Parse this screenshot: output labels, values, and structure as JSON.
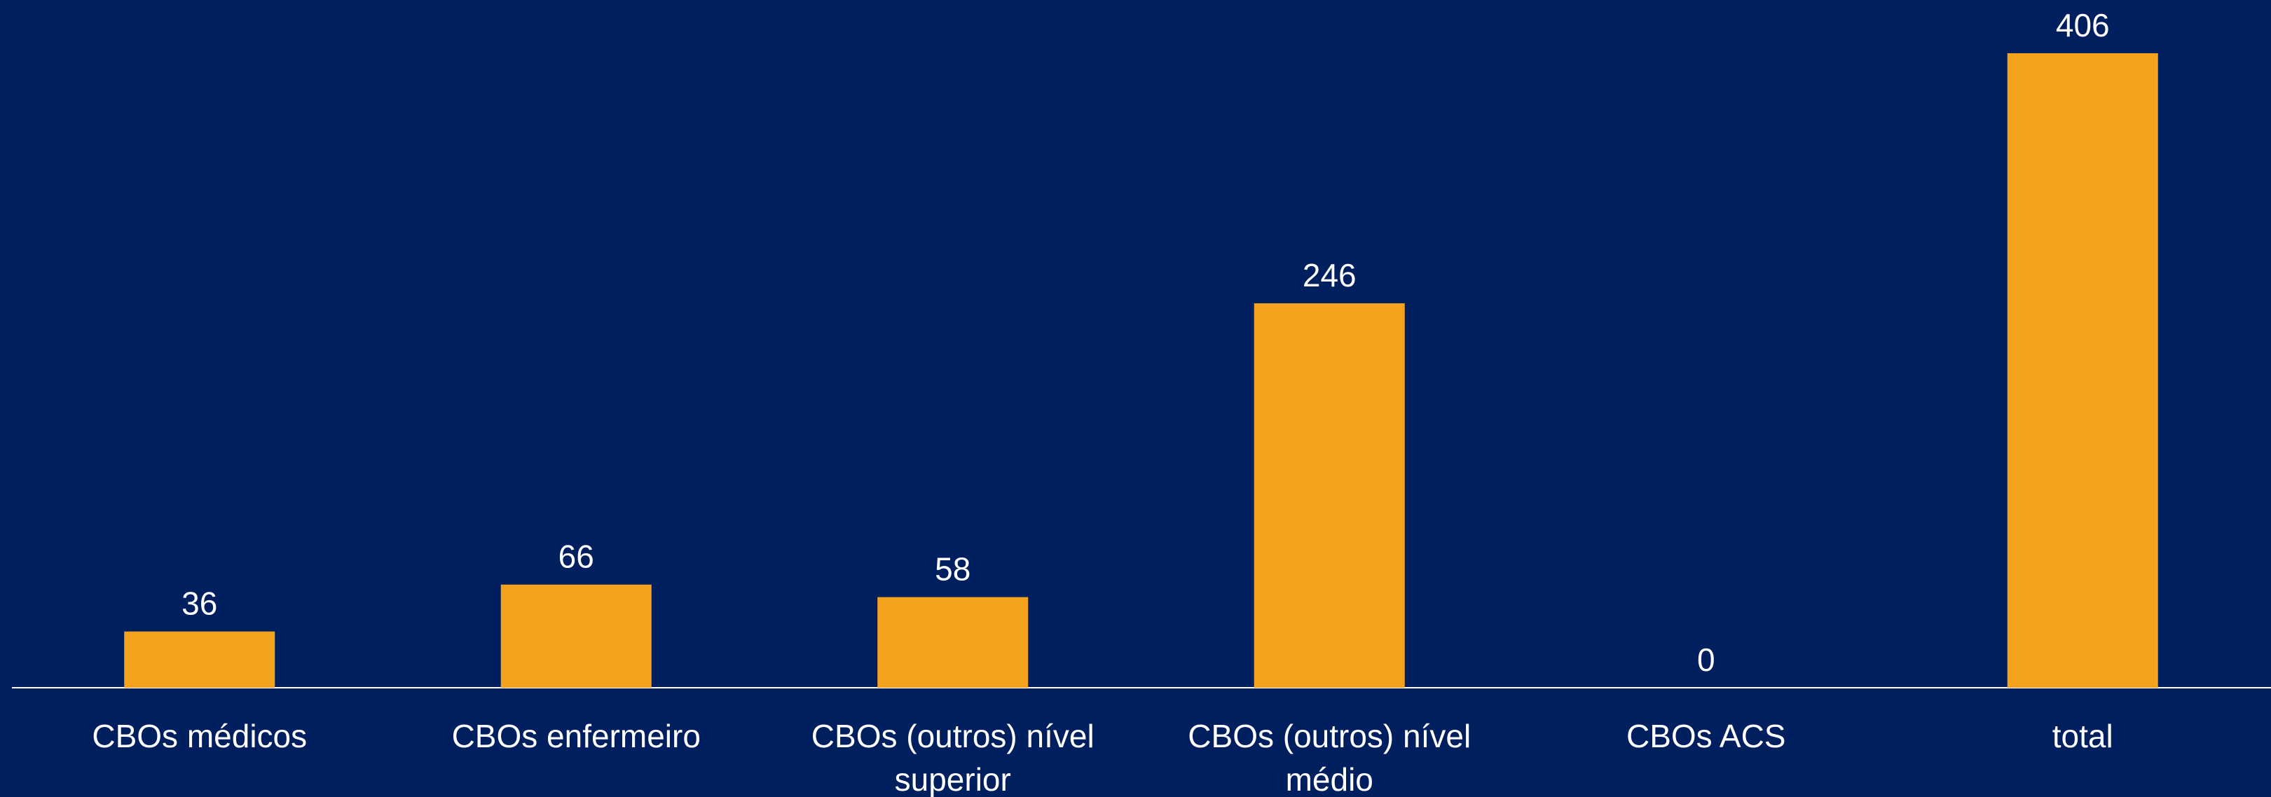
{
  "chart_data": {
    "type": "bar",
    "categories": [
      "CBOs médicos",
      "CBOs enfermeiro",
      "CBOs (outros) nível superior",
      "CBOs (outros) nível médio",
      "CBOs ACS",
      "total"
    ],
    "values": [
      36,
      66,
      58,
      246,
      0,
      406
    ],
    "color": "#f5a31f"
  }
}
